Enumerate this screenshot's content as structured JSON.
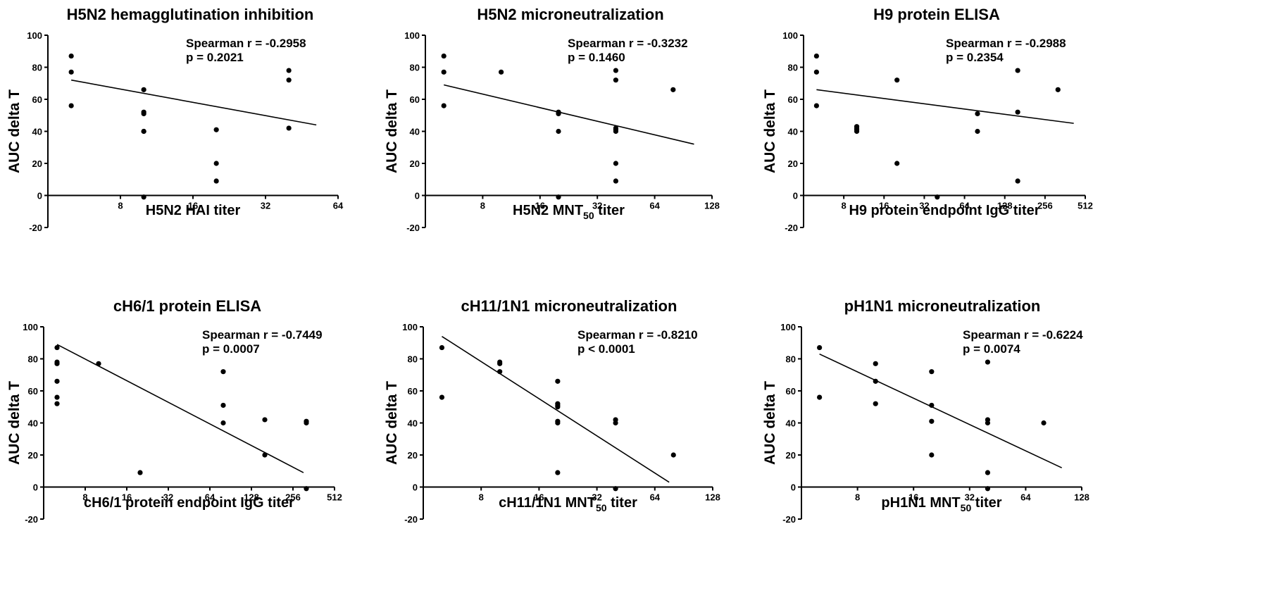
{
  "chart_data": [
    {
      "type": "scatter",
      "title": "H5N2 hemagglutination inhibition",
      "xlabel": "H5N2 HAI titer",
      "xlabel_sub": "",
      "xlabel_after": "",
      "ylabel": "AUC delta T",
      "x_scale": "log2",
      "xlim": [
        4,
        64
      ],
      "xticks": [
        8,
        16,
        32,
        64
      ],
      "ylim": [
        -20,
        100
      ],
      "yticks": [
        -20,
        0,
        20,
        40,
        60,
        80,
        100
      ],
      "stat_r": "Spearman r = -0.2958",
      "stat_p": "p = 0.2021",
      "points": [
        [
          5,
          87
        ],
        [
          5,
          77
        ],
        [
          5,
          56
        ],
        [
          10,
          66
        ],
        [
          10,
          52
        ],
        [
          10,
          51
        ],
        [
          10,
          40
        ],
        [
          10,
          40
        ],
        [
          10,
          -1
        ],
        [
          20,
          41
        ],
        [
          20,
          20
        ],
        [
          20,
          9
        ],
        [
          40,
          78
        ],
        [
          40,
          72
        ],
        [
          40,
          42
        ]
      ],
      "fit": [
        [
          5,
          72
        ],
        [
          52,
          44
        ]
      ]
    },
    {
      "type": "scatter",
      "title": "H5N2 microneutralization",
      "xlabel": "H5N2 MNT",
      "xlabel_sub": "50",
      "xlabel_after": " titer",
      "ylabel": "AUC delta T",
      "x_scale": "log2",
      "xlim": [
        4,
        128
      ],
      "xticks": [
        8,
        16,
        32,
        64,
        128
      ],
      "ylim": [
        -20,
        100
      ],
      "yticks": [
        -20,
        0,
        20,
        40,
        60,
        80,
        100
      ],
      "stat_r": "Spearman r = -0.3232",
      "stat_p": "p = 0.1460",
      "points": [
        [
          5,
          87
        ],
        [
          5,
          77
        ],
        [
          5,
          56
        ],
        [
          10,
          77
        ],
        [
          20,
          52
        ],
        [
          20,
          51
        ],
        [
          20,
          40
        ],
        [
          20,
          -1
        ],
        [
          40,
          78
        ],
        [
          40,
          72
        ],
        [
          40,
          42
        ],
        [
          40,
          41
        ],
        [
          40,
          40
        ],
        [
          40,
          20
        ],
        [
          40,
          9
        ],
        [
          80,
          66
        ]
      ],
      "fit": [
        [
          5,
          69
        ],
        [
          103,
          32
        ]
      ]
    },
    {
      "type": "scatter",
      "title": "H9 protein ELISA",
      "xlabel": "H9 protein endpoint IgG titer",
      "xlabel_sub": "",
      "xlabel_after": "",
      "ylabel": "AUC delta T",
      "x_scale": "log2",
      "xlim": [
        4,
        512
      ],
      "xticks": [
        8,
        16,
        32,
        64,
        128,
        256,
        512
      ],
      "ylim": [
        -20,
        100
      ],
      "yticks": [
        -20,
        0,
        20,
        40,
        60,
        80,
        100
      ],
      "stat_r": "Spearman r = -0.2988",
      "stat_p": "p = 0.2354",
      "points": [
        [
          5,
          87
        ],
        [
          5,
          77
        ],
        [
          5,
          56
        ],
        [
          10,
          43
        ],
        [
          10,
          42
        ],
        [
          10,
          41
        ],
        [
          10,
          40
        ],
        [
          20,
          72
        ],
        [
          20,
          20
        ],
        [
          40,
          -1
        ],
        [
          80,
          51
        ],
        [
          80,
          40
        ],
        [
          160,
          78
        ],
        [
          160,
          52
        ],
        [
          160,
          9
        ],
        [
          320,
          66
        ]
      ],
      "fit": [
        [
          5,
          66
        ],
        [
          420,
          45
        ]
      ]
    },
    {
      "type": "scatter",
      "title": "cH6/1 protein ELISA",
      "xlabel": "cH6/1 protein endpoint IgG titer",
      "xlabel_sub": "",
      "xlabel_after": "",
      "ylabel": "AUC delta T",
      "x_scale": "log2",
      "xlim": [
        4,
        512
      ],
      "xticks": [
        8,
        16,
        32,
        64,
        128,
        256,
        512
      ],
      "ylim": [
        -20,
        100
      ],
      "yticks": [
        -20,
        0,
        20,
        40,
        60,
        80,
        100
      ],
      "stat_r": "Spearman r = -0.7449",
      "stat_p": "p = 0.0007",
      "points": [
        [
          5,
          87
        ],
        [
          5,
          78
        ],
        [
          5,
          77
        ],
        [
          5,
          66
        ],
        [
          5,
          56
        ],
        [
          5,
          52
        ],
        [
          10,
          77
        ],
        [
          20,
          9
        ],
        [
          80,
          72
        ],
        [
          80,
          51
        ],
        [
          80,
          40
        ],
        [
          160,
          42
        ],
        [
          160,
          20
        ],
        [
          320,
          41
        ],
        [
          320,
          40
        ],
        [
          320,
          -1
        ]
      ],
      "fit": [
        [
          5,
          89
        ],
        [
          305,
          9
        ]
      ]
    },
    {
      "type": "scatter",
      "title": "cH11/1N1 microneutralization",
      "xlabel": "cH11/1N1 MNT",
      "xlabel_sub": "50",
      "xlabel_after": " titer",
      "ylabel": "AUC delta T",
      "x_scale": "log2",
      "xlim": [
        4,
        128
      ],
      "xticks": [
        8,
        16,
        32,
        64,
        128
      ],
      "ylim": [
        -20,
        100
      ],
      "yticks": [
        -20,
        0,
        20,
        40,
        60,
        80,
        100
      ],
      "stat_r": "Spearman r = -0.8210",
      "stat_p": "p < 0.0001",
      "points": [
        [
          5,
          87
        ],
        [
          5,
          56
        ],
        [
          10,
          78
        ],
        [
          10,
          77
        ],
        [
          10,
          72
        ],
        [
          20,
          66
        ],
        [
          20,
          52
        ],
        [
          20,
          51
        ],
        [
          20,
          50
        ],
        [
          20,
          41
        ],
        [
          20,
          40
        ],
        [
          20,
          9
        ],
        [
          40,
          42
        ],
        [
          40,
          40
        ],
        [
          40,
          -1
        ],
        [
          80,
          20
        ]
      ],
      "fit": [
        [
          5,
          94
        ],
        [
          76,
          3
        ]
      ]
    },
    {
      "type": "scatter",
      "title": "pH1N1 microneutralization",
      "xlabel": "pH1N1 MNT",
      "xlabel_sub": "50",
      "xlabel_after": " titer",
      "ylabel": "AUC delta T",
      "x_scale": "log2",
      "xlim": [
        4,
        128
      ],
      "xticks": [
        8,
        16,
        32,
        64,
        128
      ],
      "ylim": [
        -20,
        100
      ],
      "yticks": [
        -20,
        0,
        20,
        40,
        60,
        80,
        100
      ],
      "stat_r": "Spearman r = -0.6224",
      "stat_p": "p = 0.0074",
      "points": [
        [
          5,
          87
        ],
        [
          5,
          56
        ],
        [
          10,
          77
        ],
        [
          10,
          66
        ],
        [
          10,
          52
        ],
        [
          20,
          72
        ],
        [
          20,
          51
        ],
        [
          20,
          41
        ],
        [
          20,
          20
        ],
        [
          40,
          78
        ],
        [
          40,
          42
        ],
        [
          40,
          40
        ],
        [
          40,
          9
        ],
        [
          40,
          -1
        ],
        [
          80,
          40
        ]
      ],
      "fit": [
        [
          5,
          83
        ],
        [
          100,
          12
        ]
      ]
    }
  ]
}
